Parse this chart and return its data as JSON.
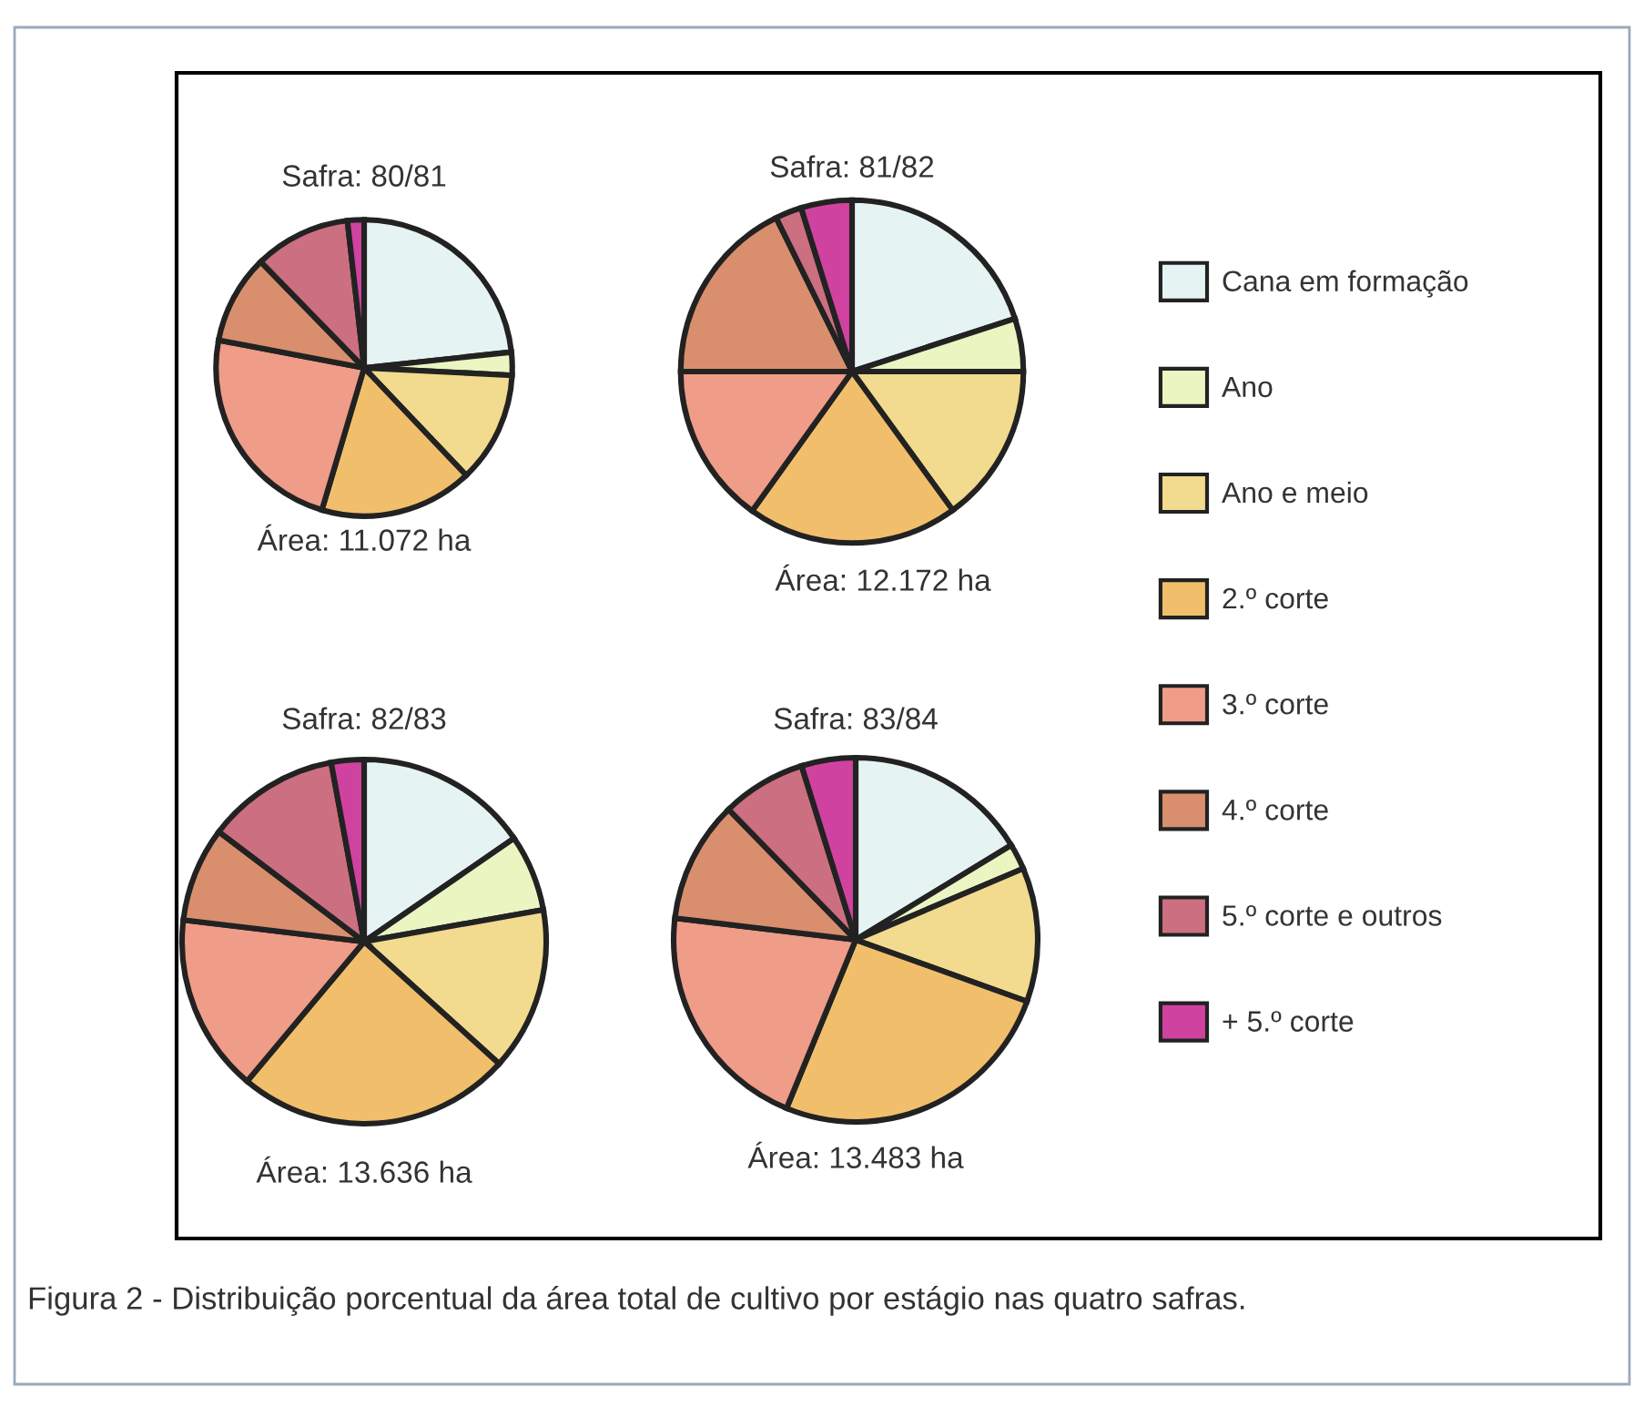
{
  "chart_data": [
    {
      "type": "pie",
      "title": "Safra: 80/81",
      "categories": [
        "Cana em formação",
        "Ano",
        "Ano e meio",
        "2.º corte",
        "3.º corte",
        "4.º corte",
        "5.º corte e outros",
        "+ 5.º corte"
      ],
      "values": [
        23.3,
        2.5,
        12.1,
        16.7,
        23.4,
        9.7,
        10.5,
        1.8
      ],
      "colors": [
        "#e6f3f3",
        "#eaf5c2",
        "#f2da8e",
        "#f1bf6c",
        "#ef9c88",
        "#d98f6e",
        "#cc6f80",
        "#d042a0"
      ],
      "annotations": [
        "Área: 11.072 ha",
        "Figura 2 - Distribuição porcentual da área total de cultivo por estágio nas quatro safras."
      ],
      "legend": "right"
    },
    {
      "type": "pie",
      "title": "Safra: 81/82",
      "values": [
        20.0,
        5.0,
        15.0,
        19.9,
        15.1,
        17.7,
        2.5,
        4.8
      ],
      "colors": [
        "#e6f3f3",
        "#eaf5c2",
        "#f2da8e",
        "#f1bf6c",
        "#ef9c88",
        "#d98f6e",
        "#cc6f80",
        "#d042a0"
      ],
      "annotations": [
        "Área: 12.172 ha"
      ]
    },
    {
      "type": "pie",
      "title": "Safra: 82/83",
      "values": [
        15.4,
        6.8,
        14.5,
        24.4,
        15.8,
        8.4,
        11.8,
        2.9
      ],
      "colors": [
        "#e6f3f3",
        "#eaf5c2",
        "#f2da8e",
        "#f1bf6c",
        "#ef9c88",
        "#d98f6e",
        "#cc6f80",
        "#d042a0"
      ],
      "annotations": [
        "Área: 13.636 ha"
      ]
    },
    {
      "type": "pie",
      "title": "Safra: 83/84",
      "values": [
        16.3,
        2.3,
        11.9,
        25.7,
        20.7,
        10.8,
        7.5,
        4.8
      ],
      "colors": [
        "#e6f3f3",
        "#eaf5c2",
        "#f2da8e",
        "#f1bf6c",
        "#ef9c88",
        "#d98f6e",
        "#cc6f80",
        "#d042a0"
      ],
      "annotations": [
        "Área: 13.483 ha"
      ]
    }
  ]
}
